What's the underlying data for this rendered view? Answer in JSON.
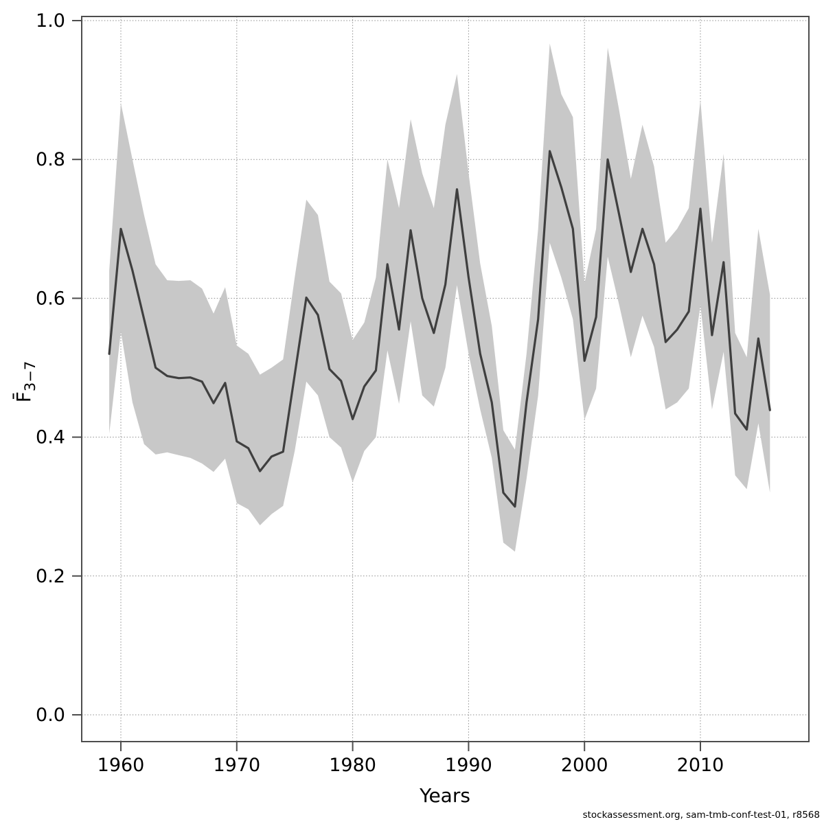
{
  "page": {
    "background": "#ffffff"
  },
  "footer": {
    "text": "stockassessment.org, sam-tmb-conf-test-01, r8568"
  },
  "chart_data": {
    "type": "line",
    "title": "",
    "xlabel": "Years",
    "ylabel_base": "F̄",
    "ylabel_subscript": "3−7",
    "grid": "dotted",
    "legend": "none",
    "band_color": "#c8c8c8",
    "line_color": "#3f3f3f",
    "grid_color": "#8c8c8c",
    "axis_color": "#4d4d4d",
    "text_color": "#000000",
    "xlim": [
      1956.5,
      2018.5
    ],
    "ylim": [
      -0.04,
      1.006
    ],
    "x_ticks": [
      {
        "v": 1960,
        "label": "1960"
      },
      {
        "v": 1970,
        "label": "1970"
      },
      {
        "v": 1980,
        "label": "1980"
      },
      {
        "v": 1990,
        "label": "1990"
      },
      {
        "v": 2000,
        "label": "2000"
      },
      {
        "v": 2010,
        "label": "2010"
      }
    ],
    "y_ticks": [
      {
        "v": 0.0,
        "label": "0.0"
      },
      {
        "v": 0.2,
        "label": "0.2"
      },
      {
        "v": 0.4,
        "label": "0.4"
      },
      {
        "v": 0.6,
        "label": "0.6"
      },
      {
        "v": 0.8,
        "label": "0.8"
      },
      {
        "v": 1.0,
        "label": "1.0"
      }
    ],
    "x": [
      1959,
      1960,
      1961,
      1962,
      1963,
      1964,
      1965,
      1966,
      1967,
      1968,
      1969,
      1970,
      1971,
      1972,
      1973,
      1974,
      1975,
      1976,
      1977,
      1978,
      1979,
      1980,
      1981,
      1982,
      1983,
      1984,
      1985,
      1986,
      1987,
      1988,
      1989,
      1990,
      1991,
      1992,
      1993,
      1994,
      1995,
      1996,
      1997,
      1998,
      1999,
      2000,
      2001,
      2002,
      2003,
      2004,
      2005,
      2006,
      2007,
      2008,
      2009,
      2010,
      2011,
      2012,
      2013,
      2014,
      2015,
      2016
    ],
    "values": [
      0.52,
      0.7,
      0.64,
      0.57,
      0.5,
      0.488,
      0.485,
      0.486,
      0.48,
      0.449,
      0.478,
      0.394,
      0.384,
      0.351,
      0.372,
      0.379,
      0.49,
      0.601,
      0.576,
      0.498,
      0.481,
      0.426,
      0.473,
      0.496,
      0.649,
      0.555,
      0.698,
      0.6,
      0.55,
      0.62,
      0.757,
      0.63,
      0.52,
      0.45,
      0.32,
      0.3,
      0.45,
      0.57,
      0.812,
      0.76,
      0.7,
      0.51,
      0.573,
      0.8,
      0.72,
      0.638,
      0.7,
      0.649,
      0.537,
      0.555,
      0.581,
      0.729,
      0.547,
      0.652,
      0.434,
      0.411,
      0.542,
      0.439
    ],
    "band_upper": [
      0.64,
      0.881,
      0.8,
      0.72,
      0.649,
      0.626,
      0.625,
      0.626,
      0.614,
      0.578,
      0.616,
      0.532,
      0.52,
      0.49,
      0.5,
      0.512,
      0.63,
      0.742,
      0.72,
      0.624,
      0.607,
      0.54,
      0.565,
      0.63,
      0.8,
      0.73,
      0.858,
      0.78,
      0.73,
      0.85,
      0.923,
      0.78,
      0.65,
      0.56,
      0.41,
      0.382,
      0.52,
      0.7,
      0.967,
      0.894,
      0.861,
      0.622,
      0.7,
      0.961,
      0.87,
      0.772,
      0.85,
      0.79,
      0.68,
      0.7,
      0.73,
      0.886,
      0.68,
      0.808,
      0.55,
      0.515,
      0.7,
      0.605
    ],
    "band_lower": [
      0.405,
      0.552,
      0.45,
      0.39,
      0.375,
      0.378,
      0.374,
      0.37,
      0.362,
      0.35,
      0.369,
      0.305,
      0.296,
      0.273,
      0.289,
      0.301,
      0.38,
      0.48,
      0.46,
      0.4,
      0.385,
      0.335,
      0.38,
      0.4,
      0.525,
      0.448,
      0.567,
      0.46,
      0.444,
      0.5,
      0.619,
      0.52,
      0.44,
      0.37,
      0.248,
      0.235,
      0.34,
      0.46,
      0.68,
      0.63,
      0.57,
      0.425,
      0.47,
      0.66,
      0.59,
      0.515,
      0.575,
      0.53,
      0.44,
      0.45,
      0.47,
      0.59,
      0.44,
      0.523,
      0.345,
      0.325,
      0.42,
      0.32
    ]
  }
}
